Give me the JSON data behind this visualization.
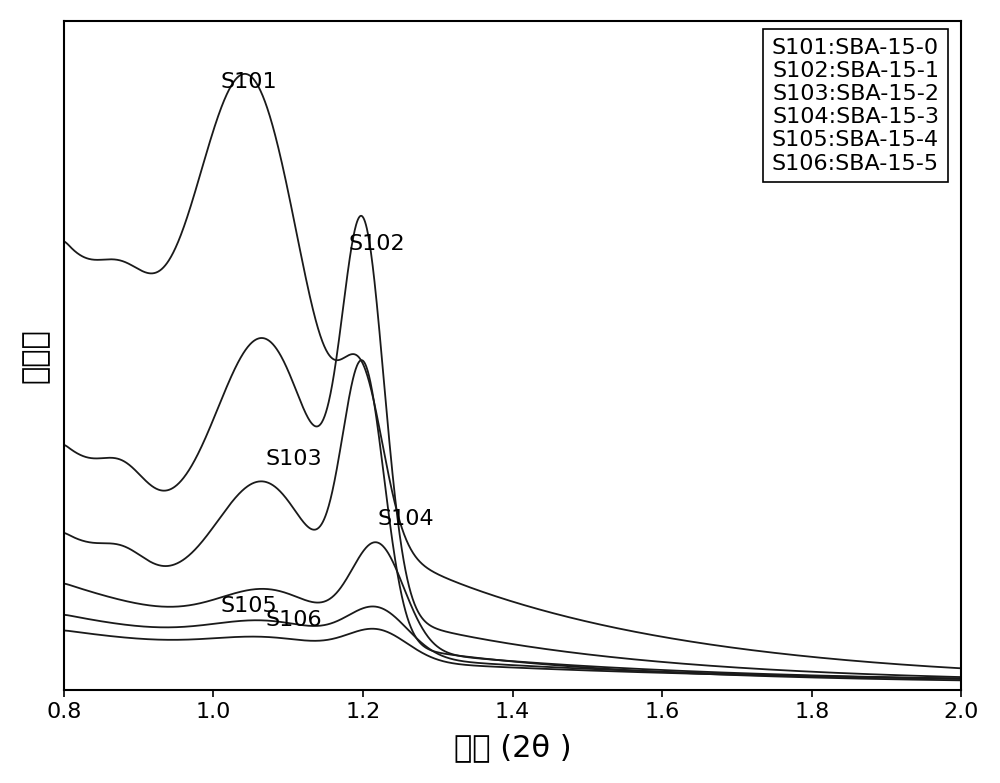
{
  "xlabel": "角度 (2θ )",
  "ylabel": "峰强度",
  "xlim": [
    0.8,
    2.0
  ],
  "xticks": [
    0.8,
    1.0,
    1.2,
    1.4,
    1.6,
    1.8,
    2.0
  ],
  "legend_entries": [
    "S101:SBA-15-0",
    "S102:SBA-15-1",
    "S103:SBA-15-2",
    "S104:SBA-15-3",
    "S105:SBA-15-4",
    "S106:SBA-15-5"
  ],
  "curve_labels": [
    "S101",
    "S102",
    "S103",
    "S104",
    "S105",
    "S106"
  ],
  "background_color": "#ffffff",
  "line_color": "#1a1a1a",
  "fontsize_axis_label": 22,
  "fontsize_tick": 16,
  "fontsize_legend": 16,
  "fontsize_curve_label": 16
}
